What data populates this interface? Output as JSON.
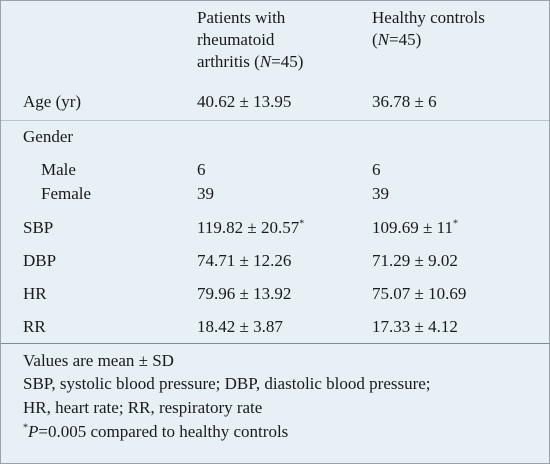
{
  "header": {
    "col1": "Patients with rheumatoid arthritis (N=45)",
    "col1_lines": [
      "Patients with",
      "rheumatoid",
      "arthritis (",
      "N",
      "=45)"
    ],
    "col2_lines": [
      "Healthy controls",
      "(",
      "N",
      "=45)"
    ]
  },
  "rows": [
    {
      "label": "Age (yr)",
      "patients": "40.62 ± 13.95",
      "controls": "36.78 ± 6"
    },
    {
      "label": "Gender",
      "patients": "",
      "controls": ""
    },
    {
      "label": "Male",
      "patients": "6",
      "controls": "6"
    },
    {
      "label": "Female",
      "patients": "39",
      "controls": "39"
    },
    {
      "label": "SBP",
      "patients": "119.82 ± 20.57",
      "patients_mark": "*",
      "controls": "109.69 ± 11",
      "controls_mark": "*"
    },
    {
      "label": "DBP",
      "patients": "74.71 ± 12.26",
      "controls": "71.29 ± 9.02"
    },
    {
      "label": "HR",
      "patients": "79.96 ± 13.92",
      "controls": "75.07 ± 10.69"
    },
    {
      "label": "RR",
      "patients": "18.42 ± 3.87",
      "controls": "17.33 ± 4.12"
    }
  ],
  "footnotes": {
    "line1": "Values are mean ± SD",
    "line2": "SBP, systolic blood pressure; DBP, diastolic blood pressure;",
    "line3": "HR, heart rate; RR, respiratory rate",
    "line4_mark": "*",
    "line4_p": "P",
    "line4_rest": "=0.005 compared to healthy controls"
  }
}
